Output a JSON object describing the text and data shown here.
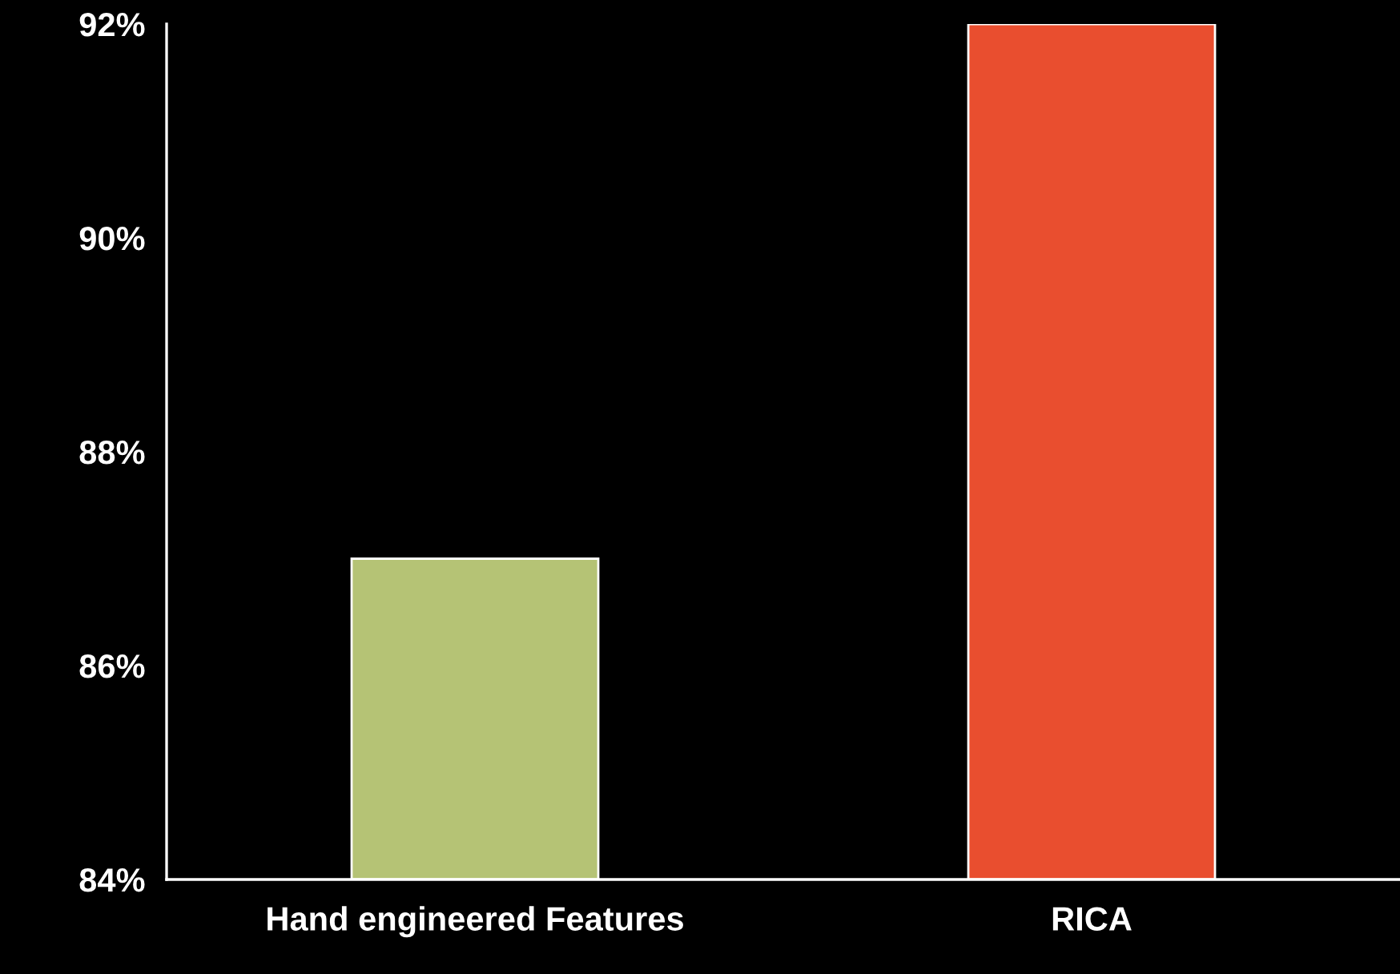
{
  "chart_data": {
    "type": "bar",
    "categories": [
      "Hand engineered Features",
      "RICA"
    ],
    "values": [
      87,
      92
    ],
    "colors": [
      "#b5c375",
      "#e94e2f"
    ],
    "ylim": [
      84,
      92
    ],
    "yticks": [
      {
        "value": 84,
        "label": "84%"
      },
      {
        "value": 86,
        "label": "86%"
      },
      {
        "value": 88,
        "label": "88%"
      },
      {
        "value": 90,
        "label": "90%"
      },
      {
        "value": 92,
        "label": "92%"
      }
    ],
    "grid": false,
    "legend": false
  }
}
